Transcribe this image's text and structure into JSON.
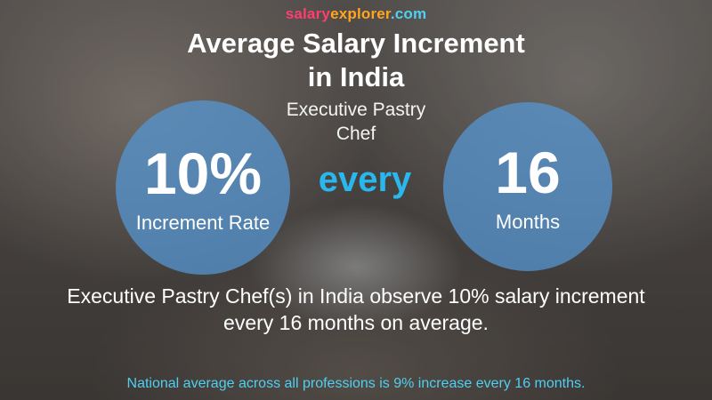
{
  "brand": {
    "part1": "salary",
    "part2": "explorer",
    "part3": ".com"
  },
  "title_line1": "Average Salary Increment",
  "title_line2": "in India",
  "job_line1": "Executive Pastry",
  "job_line2": "Chef",
  "left_circle": {
    "value": "10%",
    "caption": "Increment Rate"
  },
  "connector": "every",
  "right_circle": {
    "value": "16",
    "caption": "Months"
  },
  "summary_line1": "Executive Pastry Chef(s) in India observe 10% salary increment",
  "summary_line2": "every 16 months on average.",
  "national_note": "National average across all professions is 9% increase every 16 months.",
  "colors": {
    "circle": "#5596d2",
    "every": "#29b7ee",
    "brand_salary": "#ff3d6e",
    "brand_explorer": "#ffa51f",
    "brand_com": "#4fd0f0",
    "note": "#4fd0f0"
  }
}
